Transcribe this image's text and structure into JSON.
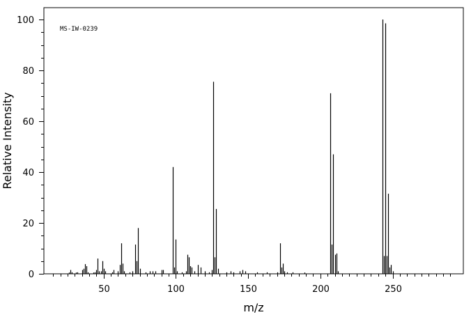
{
  "chart_data": {
    "type": "bar",
    "title": "",
    "annotation": "MS-IW-0239",
    "xlabel": "m/z",
    "ylabel": "Relative Intensity",
    "xlim": [
      10,
      300
    ],
    "ylim": [
      0,
      100
    ],
    "x_ticks": [
      50,
      100,
      150,
      200,
      250
    ],
    "y_ticks": [
      0,
      20,
      40,
      60,
      80,
      100
    ],
    "grid": false,
    "peaks": [
      {
        "mz": 26,
        "intensity": 0.5
      },
      {
        "mz": 27,
        "intensity": 1.5
      },
      {
        "mz": 28,
        "intensity": 0.6
      },
      {
        "mz": 31,
        "intensity": 0.5
      },
      {
        "mz": 32,
        "intensity": 0.6
      },
      {
        "mz": 35,
        "intensity": 1.5
      },
      {
        "mz": 36,
        "intensity": 2.0
      },
      {
        "mz": 37,
        "intensity": 3.8
      },
      {
        "mz": 38,
        "intensity": 3.0
      },
      {
        "mz": 39,
        "intensity": 0.6
      },
      {
        "mz": 43,
        "intensity": 0.5
      },
      {
        "mz": 44,
        "intensity": 0.6
      },
      {
        "mz": 45,
        "intensity": 1.5
      },
      {
        "mz": 46,
        "intensity": 6.0
      },
      {
        "mz": 47,
        "intensity": 1.0
      },
      {
        "mz": 48,
        "intensity": 1.0
      },
      {
        "mz": 49,
        "intensity": 5.0
      },
      {
        "mz": 50,
        "intensity": 2.0
      },
      {
        "mz": 51,
        "intensity": 1.0
      },
      {
        "mz": 56,
        "intensity": 0.6
      },
      {
        "mz": 57,
        "intensity": 1.5
      },
      {
        "mz": 60,
        "intensity": 1.0
      },
      {
        "mz": 61,
        "intensity": 3.5
      },
      {
        "mz": 62,
        "intensity": 12.0
      },
      {
        "mz": 63,
        "intensity": 4.0
      },
      {
        "mz": 64,
        "intensity": 1.0
      },
      {
        "mz": 68,
        "intensity": 0.6
      },
      {
        "mz": 70,
        "intensity": 1.0
      },
      {
        "mz": 72,
        "intensity": 11.5
      },
      {
        "mz": 73,
        "intensity": 5.0
      },
      {
        "mz": 74,
        "intensity": 18.0
      },
      {
        "mz": 75,
        "intensity": 2.0
      },
      {
        "mz": 79,
        "intensity": 0.6
      },
      {
        "mz": 82,
        "intensity": 1.0
      },
      {
        "mz": 84,
        "intensity": 1.0
      },
      {
        "mz": 86,
        "intensity": 1.0
      },
      {
        "mz": 90,
        "intensity": 1.5
      },
      {
        "mz": 91,
        "intensity": 1.5
      },
      {
        "mz": 98,
        "intensity": 42.0
      },
      {
        "mz": 99,
        "intensity": 2.5
      },
      {
        "mz": 100,
        "intensity": 13.5
      },
      {
        "mz": 101,
        "intensity": 1.0
      },
      {
        "mz": 104,
        "intensity": 0.6
      },
      {
        "mz": 107,
        "intensity": 1.0
      },
      {
        "mz": 108,
        "intensity": 7.5
      },
      {
        "mz": 109,
        "intensity": 6.5
      },
      {
        "mz": 110,
        "intensity": 3.0
      },
      {
        "mz": 111,
        "intensity": 2.5
      },
      {
        "mz": 113,
        "intensity": 1.0
      },
      {
        "mz": 115,
        "intensity": 3.5
      },
      {
        "mz": 117,
        "intensity": 2.5
      },
      {
        "mz": 120,
        "intensity": 1.0
      },
      {
        "mz": 123,
        "intensity": 0.6
      },
      {
        "mz": 125,
        "intensity": 1.5
      },
      {
        "mz": 126,
        "intensity": 75.5
      },
      {
        "mz": 127,
        "intensity": 6.5
      },
      {
        "mz": 128,
        "intensity": 25.5
      },
      {
        "mz": 129,
        "intensity": 2.0
      },
      {
        "mz": 135,
        "intensity": 0.6
      },
      {
        "mz": 138,
        "intensity": 1.0
      },
      {
        "mz": 140,
        "intensity": 0.6
      },
      {
        "mz": 144,
        "intensity": 1.0
      },
      {
        "mz": 146,
        "intensity": 1.5
      },
      {
        "mz": 148,
        "intensity": 1.0
      },
      {
        "mz": 156,
        "intensity": 0.6
      },
      {
        "mz": 163,
        "intensity": 0.6
      },
      {
        "mz": 170,
        "intensity": 0.6
      },
      {
        "mz": 172,
        "intensity": 12.0
      },
      {
        "mz": 173,
        "intensity": 2.5
      },
      {
        "mz": 174,
        "intensity": 4.0
      },
      {
        "mz": 175,
        "intensity": 1.0
      },
      {
        "mz": 177,
        "intensity": 0.6
      },
      {
        "mz": 181,
        "intensity": 0.6
      },
      {
        "mz": 189,
        "intensity": 0.5
      },
      {
        "mz": 207,
        "intensity": 71.0
      },
      {
        "mz": 208,
        "intensity": 11.5
      },
      {
        "mz": 209,
        "intensity": 47.0
      },
      {
        "mz": 210,
        "intensity": 7.5
      },
      {
        "mz": 211,
        "intensity": 8.0
      },
      {
        "mz": 212,
        "intensity": 1.0
      },
      {
        "mz": 243,
        "intensity": 100.0
      },
      {
        "mz": 244,
        "intensity": 7.0
      },
      {
        "mz": 245,
        "intensity": 98.5
      },
      {
        "mz": 246,
        "intensity": 7.0
      },
      {
        "mz": 247,
        "intensity": 31.5
      },
      {
        "mz": 248,
        "intensity": 2.5
      },
      {
        "mz": 249,
        "intensity": 3.5
      },
      {
        "mz": 250,
        "intensity": 1.0
      }
    ]
  }
}
